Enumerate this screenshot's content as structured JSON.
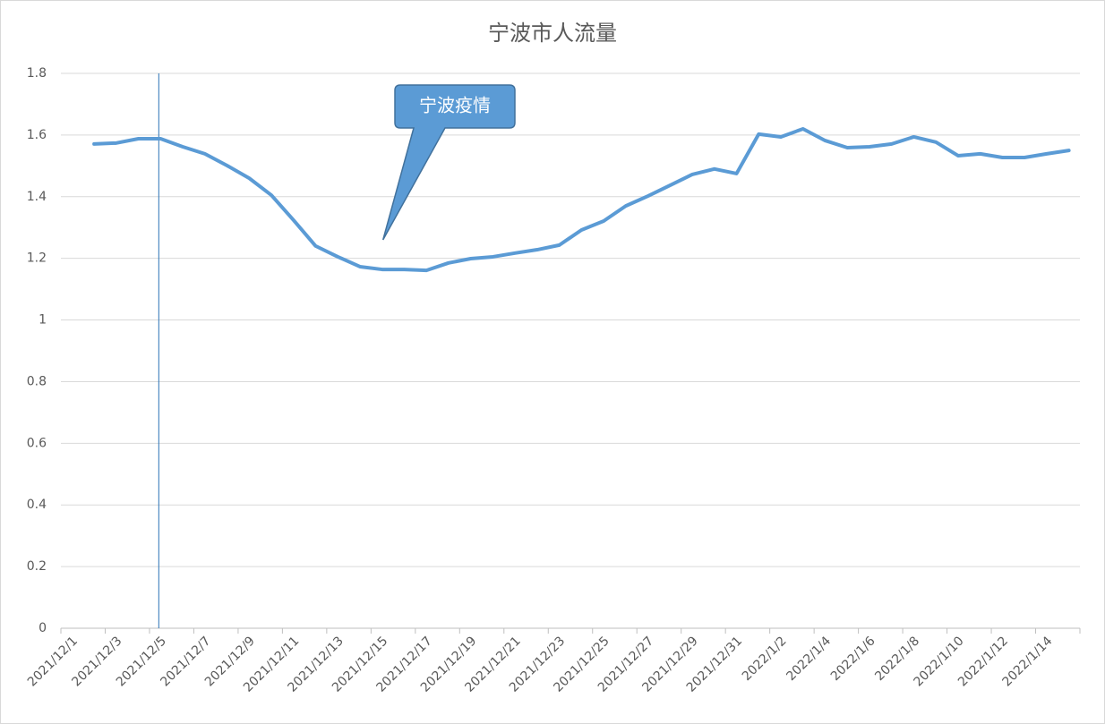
{
  "chart_data": {
    "type": "line",
    "title": "宁波市人流量",
    "categories": [
      "2021/12/1",
      null,
      "2021/12/3",
      null,
      "2021/12/5",
      null,
      "2021/12/7",
      null,
      "2021/12/9",
      null,
      "2021/12/11",
      null,
      "2021/12/13",
      null,
      "2021/12/15",
      null,
      "2021/12/17",
      null,
      "2021/12/19",
      null,
      "2021/12/21",
      null,
      "2021/12/23",
      null,
      "2021/12/25",
      null,
      "2021/12/27",
      null,
      "2021/12/29",
      null,
      "2021/12/31",
      null,
      "2022/1/2",
      null,
      "2022/1/4",
      null,
      "2022/1/6",
      null,
      "2022/1/8",
      null,
      "2022/1/10",
      null,
      "2022/1/12",
      null,
      "2022/1/14",
      null
    ],
    "series": [
      {
        "color": "#5b9bd5",
        "values": [
          null,
          1.571,
          1.574,
          1.588,
          1.588,
          1.562,
          1.539,
          1.501,
          1.46,
          1.405,
          1.324,
          1.24,
          1.205,
          1.173,
          1.164,
          1.164,
          1.161,
          1.185,
          1.199,
          1.205,
          1.217,
          1.228,
          1.243,
          1.292,
          1.321,
          1.37,
          1.402,
          1.437,
          1.472,
          1.49,
          1.475,
          1.603,
          1.594,
          1.62,
          1.582,
          1.559,
          1.562,
          1.571,
          1.594,
          1.577,
          1.533,
          1.539,
          1.527,
          1.527,
          1.539,
          1.55
        ]
      }
    ],
    "ylim": [
      0,
      1.8
    ],
    "yticks": [
      0,
      0.2,
      0.4,
      0.6,
      0.8,
      1,
      1.2,
      1.4,
      1.6,
      1.8
    ],
    "grid": true,
    "vline_category": "2021/12/5",
    "annotation": {
      "text": "宁波疫情",
      "category": "2021/12/15",
      "value": 1.26
    }
  }
}
